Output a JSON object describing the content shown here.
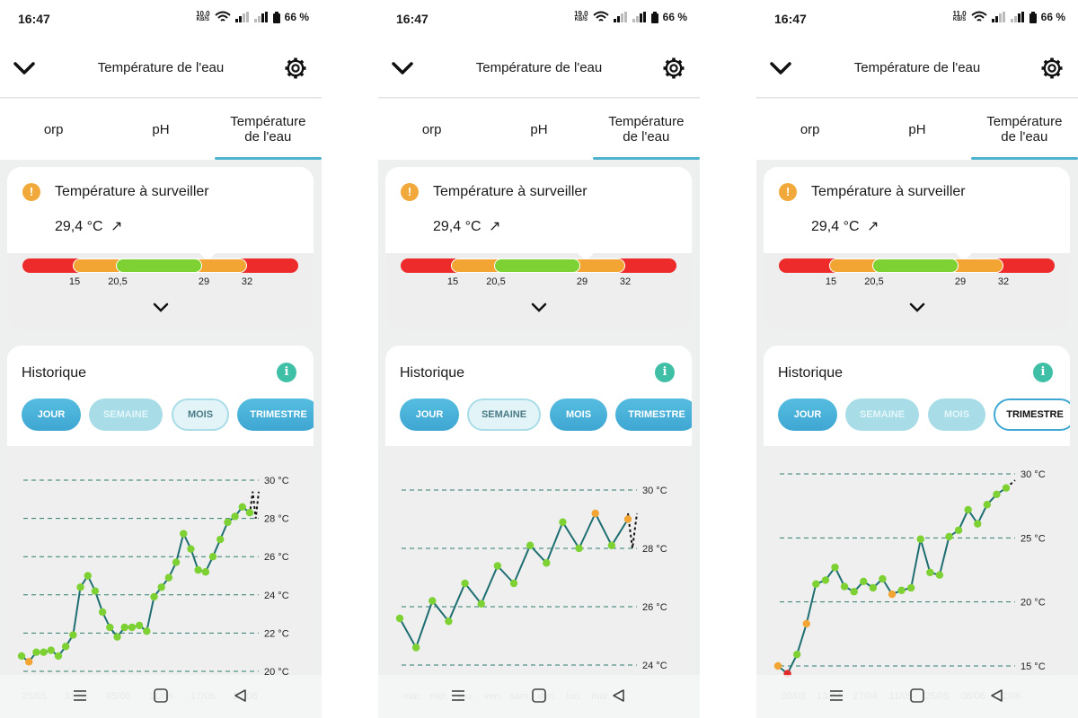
{
  "screens": [
    {
      "status": {
        "time": "16:47",
        "net_value": "10,0",
        "net_unit": "KB/S",
        "battery": "66 %"
      },
      "header": {
        "title": "Température de l'eau"
      },
      "tabs": [
        {
          "label": "orp"
        },
        {
          "label": "pH"
        },
        {
          "label": "Température\nde l'eau"
        }
      ],
      "active_tab": 2,
      "status_card": {
        "title": "Température à surveiller",
        "value": "29,4 °C",
        "trend": "↗",
        "range_labels": [
          "15",
          "20,5",
          "29",
          "32"
        ]
      },
      "history": {
        "title": "Historique",
        "info": "i",
        "period_buttons": [
          "JOUR",
          "SEMAINE",
          "MOIS",
          "TRIMESTRE"
        ],
        "button_styles": [
          "solid",
          "faded",
          "light",
          "solid"
        ]
      },
      "chart_data": {
        "type": "line",
        "x_labels": [
          "25/05",
          "31/05",
          "05/06",
          "11/06",
          "17/06",
          "23/06"
        ],
        "y_labels": [
          "30 °C",
          "28 °C",
          "26 °C",
          "24 °C",
          "22 °C",
          "20 °C"
        ],
        "ylim": [
          20,
          30
        ],
        "grid": "dashed",
        "series": [
          {
            "values": [
              20.8,
              20.5,
              21.0,
              21.0,
              21.1,
              20.8,
              21.3,
              21.9,
              24.4,
              25.0,
              24.2,
              23.1,
              22.3,
              21.8,
              22.3,
              22.3,
              22.4,
              22.1,
              23.9,
              24.4,
              24.9,
              25.7,
              27.2,
              26.4,
              25.3,
              25.2,
              26.0,
              26.9,
              27.8,
              28.1,
              28.6,
              28.3
            ],
            "point_colors": {
              "1": "#f2a533"
            }
          }
        ],
        "forecast": [
          28.2,
          29.4,
          28.0,
          29.4
        ]
      },
      "nav": {
        "recents": "recents-icon",
        "home": "home-icon",
        "back": "back-icon"
      }
    },
    {
      "status": {
        "time": "16:47",
        "net_value": "19,0",
        "net_unit": "KB/S",
        "battery": "66 %"
      },
      "header": {
        "title": "Température de l'eau"
      },
      "tabs": [
        {
          "label": "orp"
        },
        {
          "label": "pH"
        },
        {
          "label": "Température\nde l'eau"
        }
      ],
      "active_tab": 2,
      "status_card": {
        "title": "Température à surveiller",
        "value": "29,4 °C",
        "trend": "↗",
        "range_labels": [
          "15",
          "20,5",
          "29",
          "32"
        ]
      },
      "history": {
        "title": "Historique",
        "info": "i",
        "period_buttons": [
          "JOUR",
          "SEMAINE",
          "MOIS",
          "TRIMESTRE"
        ],
        "button_styles": [
          "solid",
          "light",
          "solid",
          "solid"
        ]
      },
      "chart_data": {
        "type": "line",
        "x_labels": [
          "mar.",
          "mer.",
          "jeu.",
          "ven.",
          "sam.",
          "dim.",
          "lun.",
          "mar."
        ],
        "y_labels": [
          "30 °C",
          "28 °C",
          "26 °C",
          "24 °C"
        ],
        "ylim": [
          24,
          30
        ],
        "grid": "dashed",
        "series": [
          {
            "values": [
              25.6,
              24.6,
              26.2,
              25.5,
              26.8,
              26.1,
              27.4,
              26.8,
              28.1,
              27.5,
              28.9,
              28.0,
              29.2,
              28.1,
              29.0
            ],
            "point_colors": {
              "12": "#f2a533",
              "14": "#f2a533"
            }
          }
        ],
        "forecast": [
          29.2,
          28.0,
          29.2
        ]
      },
      "nav": {
        "recents": "recents-icon",
        "home": "home-icon",
        "back": "back-icon"
      }
    },
    {
      "status": {
        "time": "16:47",
        "net_value": "11,0",
        "net_unit": "KB/S",
        "battery": "66 %"
      },
      "header": {
        "title": "Température de l'eau"
      },
      "tabs": [
        {
          "label": "orp"
        },
        {
          "label": "pH"
        },
        {
          "label": "Température\nde l'eau"
        }
      ],
      "active_tab": 2,
      "status_card": {
        "title": "Température à surveiller",
        "value": "29,4 °C",
        "trend": "↗",
        "range_labels": [
          "15",
          "20,5",
          "29",
          "32"
        ]
      },
      "history": {
        "title": "Historique",
        "info": "i",
        "period_buttons": [
          "JOUR",
          "SEMAINE",
          "MOIS",
          "TRIMESTRE"
        ],
        "button_styles": [
          "solid",
          "faded",
          "faded",
          "outline"
        ]
      },
      "chart_data": {
        "type": "line",
        "x_labels": [
          "30/03",
          "13/04",
          "27/04",
          "11/05",
          "25/05",
          "08/06",
          "22/06"
        ],
        "y_labels": [
          "30 °C",
          "25 °C",
          "20 °C",
          "15 °C"
        ],
        "ylim": [
          15,
          30
        ],
        "grid": "dashed",
        "series": [
          {
            "values": [
              15.0,
              14.4,
              15.9,
              18.3,
              21.4,
              21.7,
              22.7,
              21.2,
              20.8,
              21.6,
              21.1,
              21.8,
              20.6,
              20.9,
              21.1,
              24.9,
              22.3,
              22.1,
              25.1,
              25.6,
              27.2,
              26.1,
              27.6,
              28.4,
              28.9
            ],
            "point_colors": {
              "0": "#f2a533",
              "1": "#e02b2b",
              "3": "#f2a533",
              "12": "#f2a533"
            }
          }
        ],
        "forecast": [
          28.9,
          29.5
        ]
      },
      "nav": {
        "recents": "recents-icon",
        "home": "home-icon",
        "back": "back-icon"
      }
    }
  ]
}
